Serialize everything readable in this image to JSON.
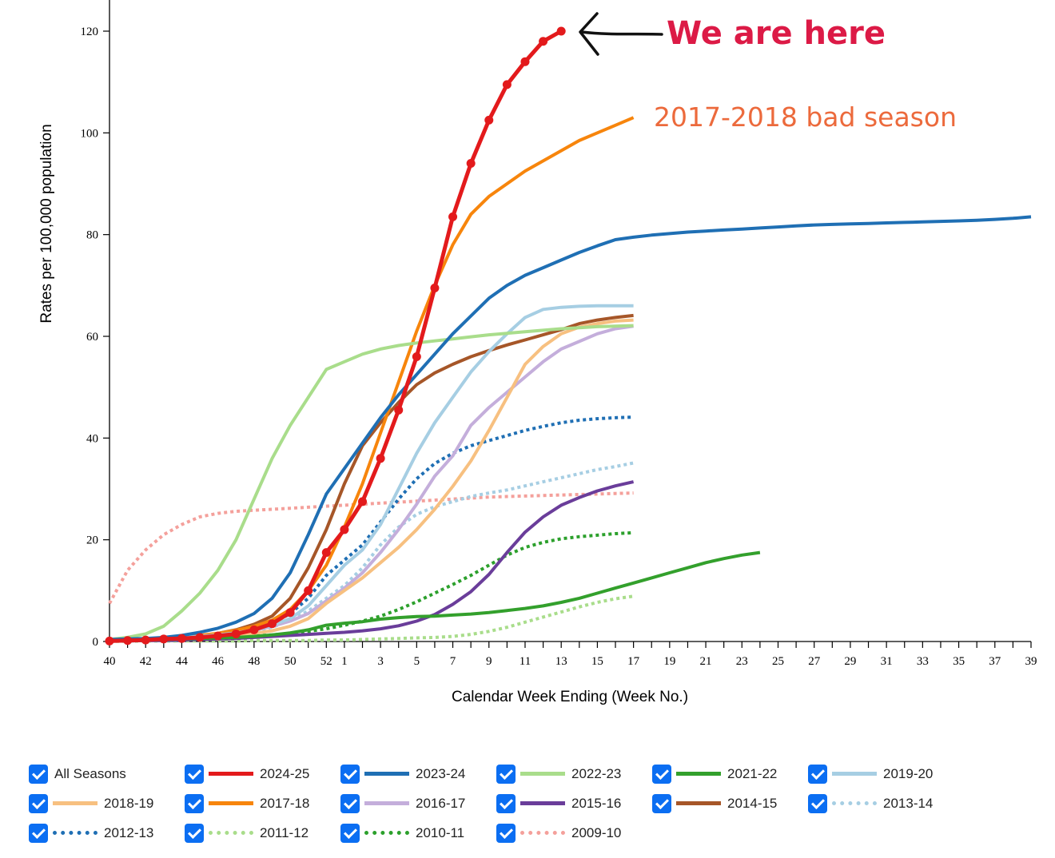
{
  "chart_data": {
    "type": "line",
    "title": "",
    "xlabel": "Calendar Week Ending (Week No.)",
    "ylabel": "Rates per 100,000 population",
    "ylim": [
      0,
      125
    ],
    "yticks": [
      0,
      20,
      40,
      60,
      80,
      100,
      120
    ],
    "xticks": [
      "40",
      "42",
      "44",
      "46",
      "48",
      "50",
      "52",
      "1",
      "3",
      "5",
      "7",
      "9",
      "11",
      "13",
      "15",
      "17",
      "19",
      "21",
      "23",
      "25",
      "27",
      "29",
      "31",
      "33",
      "35",
      "37",
      "39"
    ],
    "x_weeks": [
      "40",
      "41",
      "42",
      "43",
      "44",
      "45",
      "46",
      "47",
      "48",
      "49",
      "50",
      "51",
      "52",
      "1",
      "2",
      "3",
      "4",
      "5",
      "6",
      "7",
      "8",
      "9",
      "10",
      "11",
      "12",
      "13",
      "14",
      "15",
      "16",
      "17",
      "18",
      "19",
      "20",
      "21",
      "22",
      "23",
      "24",
      "25",
      "26",
      "27",
      "28",
      "29",
      "30",
      "31",
      "32",
      "33",
      "34",
      "35",
      "36",
      "37",
      "38",
      "39"
    ],
    "grid": false,
    "legend_position": "bottom",
    "annotations": [
      {
        "text": "We are here",
        "color": "#dc1a46"
      },
      {
        "text": "2017-2018 bad season",
        "color": "#ec6a3c"
      }
    ],
    "series": [
      {
        "name": "2009-10",
        "color": "#f4a09b",
        "dash": "dot",
        "values": [
          7.5,
          14,
          18,
          21,
          23,
          24.5,
          25.2,
          25.6,
          25.8,
          26,
          26.2,
          26.4,
          26.6,
          26.8,
          27,
          27.2,
          27.4,
          27.6,
          27.8,
          28,
          28.2,
          28.4,
          28.5,
          28.6,
          28.7,
          28.8,
          28.9,
          29,
          29.1,
          29.2
        ]
      },
      {
        "name": "2010-11",
        "color": "#2ca02c",
        "dash": "dot",
        "values": [
          0.2,
          0.3,
          0.4,
          0.5,
          0.6,
          0.7,
          0.8,
          0.9,
          1.1,
          1.3,
          1.6,
          2,
          2.5,
          3.2,
          4,
          5,
          6.3,
          7.8,
          9.5,
          11.2,
          13,
          15,
          17,
          18.5,
          19.5,
          20.2,
          20.6,
          20.9,
          21.2,
          21.4
        ]
      },
      {
        "name": "2011-12",
        "color": "#a9dd8b",
        "dash": "dot",
        "values": [
          0.05,
          0.05,
          0.1,
          0.1,
          0.1,
          0.1,
          0.1,
          0.1,
          0.2,
          0.2,
          0.2,
          0.2,
          0.3,
          0.3,
          0.4,
          0.5,
          0.6,
          0.7,
          0.8,
          1,
          1.4,
          2,
          2.8,
          3.8,
          4.8,
          5.8,
          6.8,
          7.7,
          8.4,
          8.9
        ]
      },
      {
        "name": "2012-13",
        "color": "#1f6fb4",
        "dash": "dot",
        "values": [
          0.2,
          0.2,
          0.3,
          0.4,
          0.5,
          0.7,
          1,
          1.5,
          2.3,
          3.5,
          5.5,
          8.5,
          13,
          16,
          19,
          23.5,
          28,
          32,
          35,
          37,
          38.5,
          39.5,
          40.5,
          41.5,
          42.3,
          43,
          43.5,
          43.8,
          44,
          44.1
        ]
      },
      {
        "name": "2013-14",
        "color": "#a6cee3",
        "dash": "dot",
        "values": [
          0.2,
          0.2,
          0.3,
          0.4,
          0.5,
          0.7,
          1,
          1.4,
          2,
          2.8,
          4.2,
          6,
          8.5,
          11,
          14.5,
          19,
          22.5,
          25,
          26.5,
          27.5,
          28.5,
          29.2,
          29.8,
          30.6,
          31.4,
          32.2,
          33,
          33.8,
          34.4,
          35.1
        ]
      },
      {
        "name": "2014-15",
        "color": "#a65628",
        "dash": "solid",
        "values": [
          0.3,
          0.4,
          0.5,
          0.6,
          0.8,
          1.1,
          1.6,
          2.3,
          3.4,
          5,
          8.5,
          14.5,
          22,
          31,
          38.5,
          43,
          47,
          50.5,
          52.8,
          54.5,
          56,
          57.2,
          58.3,
          59.3,
          60.3,
          61.3,
          62.5,
          63.2,
          63.7,
          64.1
        ]
      },
      {
        "name": "2015-16",
        "color": "#6a3d9a",
        "dash": "solid",
        "values": [
          0.1,
          0.1,
          0.2,
          0.2,
          0.3,
          0.4,
          0.5,
          0.6,
          0.8,
          1,
          1.2,
          1.4,
          1.6,
          1.8,
          2.1,
          2.5,
          3.1,
          4,
          5.3,
          7.3,
          9.8,
          13.2,
          17.5,
          21.5,
          24.5,
          26.8,
          28.3,
          29.6,
          30.6,
          31.4
        ]
      },
      {
        "name": "2016-17",
        "color": "#c4aedb",
        "dash": "solid",
        "values": [
          0.3,
          0.4,
          0.5,
          0.6,
          0.8,
          1,
          1.3,
          1.7,
          2.2,
          3,
          4,
          5.5,
          8,
          10.5,
          13.5,
          17.5,
          22,
          27,
          32.5,
          36.5,
          42.5,
          46,
          49,
          52,
          55,
          57.5,
          59,
          60.5,
          61.5,
          62
        ]
      },
      {
        "name": "2017-18",
        "color": "#f7850c",
        "dash": "solid",
        "values": [
          0.3,
          0.4,
          0.5,
          0.7,
          0.9,
          1.2,
          1.6,
          2.2,
          3,
          4.2,
          6.3,
          10,
          15,
          22.5,
          31,
          41,
          51,
          61,
          70,
          78,
          84,
          87.5,
          90,
          92.5,
          94.5,
          96.5,
          98.5,
          100,
          101.5,
          103
        ]
      },
      {
        "name": "2018-19",
        "color": "#f7c080",
        "dash": "solid",
        "values": [
          0.3,
          0.3,
          0.4,
          0.5,
          0.6,
          0.7,
          0.9,
          1.2,
          1.6,
          2.1,
          3,
          4.5,
          7.5,
          10,
          12.5,
          15.5,
          18.5,
          22,
          26,
          30.5,
          35.5,
          41.5,
          48,
          54.5,
          58,
          60.5,
          61.8,
          62.5,
          63,
          63.2
        ]
      },
      {
        "name": "2019-20",
        "color": "#a6cee3",
        "dash": "solid",
        "values": [
          0.3,
          0.4,
          0.5,
          0.6,
          0.8,
          1,
          1.3,
          1.7,
          2.3,
          3.2,
          4.5,
          7,
          11,
          15,
          18,
          23,
          30,
          37,
          43,
          48,
          53,
          57,
          60.5,
          63.7,
          65.3,
          65.7,
          65.9,
          66,
          66,
          66
        ]
      },
      {
        "name": "2021-22",
        "color": "#33a02c",
        "dash": "solid",
        "values": [
          0.2,
          0.3,
          0.3,
          0.4,
          0.5,
          0.6,
          0.7,
          0.8,
          1,
          1.3,
          1.7,
          2.3,
          3.2,
          3.6,
          3.9,
          4.4,
          4.7,
          4.9,
          5,
          5.2,
          5.4,
          5.7,
          6.1,
          6.5,
          7,
          7.7,
          8.5,
          9.5,
          10.5,
          11.5,
          12.5,
          13.5,
          14.5,
          15.5,
          16.3,
          17,
          17.5
        ]
      },
      {
        "name": "2022-23",
        "color": "#a9dd8b",
        "dash": "solid",
        "values": [
          0.4,
          0.8,
          1.5,
          3,
          6,
          9.5,
          14,
          20,
          28,
          36,
          42.5,
          48,
          53.5,
          55,
          56.5,
          57.5,
          58.2,
          58.7,
          59.1,
          59.5,
          59.9,
          60.3,
          60.6,
          60.9,
          61.2,
          61.5,
          61.7,
          61.9,
          62,
          62.1
        ]
      },
      {
        "name": "2023-24",
        "color": "#1f6fb4",
        "dash": "solid",
        "values": [
          0.4,
          0.5,
          0.6,
          0.8,
          1.2,
          1.8,
          2.6,
          3.8,
          5.5,
          8.5,
          13.5,
          21,
          29,
          34,
          39,
          44,
          48.5,
          52.5,
          56.5,
          60.5,
          64,
          67.5,
          70,
          72,
          73.5,
          75,
          76.5,
          77.8,
          79,
          79.5,
          79.9,
          80.2,
          80.5,
          80.7,
          80.9,
          81.1,
          81.3,
          81.5,
          81.7,
          81.9,
          82,
          82.1,
          82.2,
          82.3,
          82.4,
          82.5,
          82.6,
          82.7,
          82.8,
          83,
          83.2,
          83.5
        ]
      },
      {
        "name": "2024-25",
        "color": "#e31a1c",
        "dash": "solid",
        "markers": true,
        "values": [
          0.1,
          0.2,
          0.3,
          0.5,
          0.6,
          0.8,
          1.1,
          1.5,
          2.3,
          3.5,
          5.7,
          10,
          17.5,
          22,
          27.5,
          36,
          45.5,
          56,
          69.5,
          83.5,
          94,
          102.5,
          109.5,
          114,
          118,
          120
        ]
      }
    ]
  }
}
